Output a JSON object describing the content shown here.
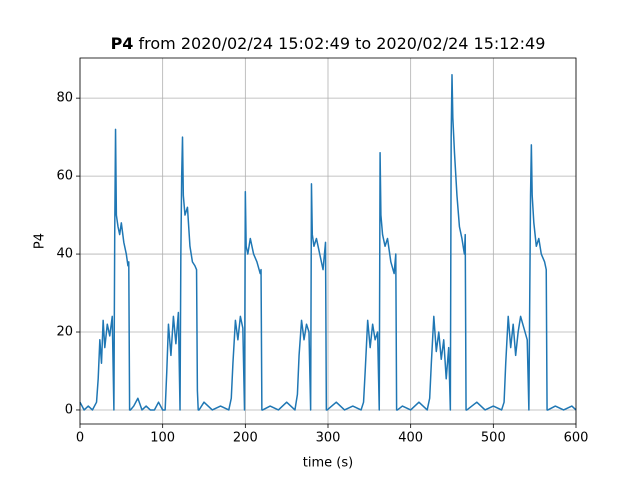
{
  "chart_data": {
    "type": "line",
    "title": {
      "bold": "P4",
      "text": "from 2020/02/24 15:02:49 to 2020/02/24 15:12:49"
    },
    "xlabel": "time (s)",
    "ylabel": "P4",
    "xlim": [
      0,
      600
    ],
    "ylim": [
      -3.6,
      90.3
    ],
    "xticks": [
      0,
      100,
      200,
      300,
      400,
      500,
      600
    ],
    "yticks": [
      0,
      20,
      40,
      60,
      80
    ],
    "grid": true,
    "x": [
      0,
      5,
      10,
      15,
      20,
      22,
      24,
      26,
      28,
      30,
      33,
      36,
      39,
      41,
      42,
      43,
      44,
      46,
      48,
      50,
      53,
      56,
      58,
      59,
      60,
      61,
      65,
      70,
      75,
      80,
      85,
      90,
      95,
      100,
      103,
      105,
      107,
      110,
      113,
      116,
      119,
      121,
      122,
      123,
      124,
      125,
      127,
      130,
      133,
      136,
      139,
      141,
      142,
      143,
      144,
      150,
      160,
      170,
      180,
      183,
      185,
      188,
      191,
      194,
      197,
      199,
      200,
      201,
      203,
      206,
      210,
      214,
      218,
      219,
      220,
      221,
      230,
      240,
      250,
      260,
      263,
      265,
      268,
      271,
      274,
      277,
      279,
      280,
      281,
      283,
      286,
      290,
      294,
      297,
      298,
      299,
      310,
      320,
      330,
      340,
      343,
      345,
      348,
      351,
      354,
      357,
      360,
      362,
      363,
      364,
      366,
      369,
      372,
      376,
      380,
      382,
      383,
      384,
      390,
      400,
      410,
      420,
      423,
      425,
      428,
      431,
      434,
      437,
      440,
      443,
      446,
      448,
      449,
      450,
      451,
      453,
      456,
      459,
      462,
      465,
      466,
      467,
      468,
      480,
      490,
      500,
      510,
      513,
      515,
      518,
      521,
      524,
      527,
      530,
      533,
      541,
      543,
      545,
      546,
      547,
      549,
      552,
      555,
      558,
      562,
      564,
      565,
      566,
      575,
      585,
      595,
      600
    ],
    "series": [
      {
        "name": "P4",
        "color": "#1f77b4",
        "values": [
          2,
          0,
          1,
          0,
          2,
          8,
          18,
          12,
          23,
          16,
          22,
          19,
          24,
          0,
          45,
          72,
          50,
          47,
          45,
          48,
          43,
          40,
          37,
          38,
          0,
          0,
          1,
          3,
          0,
          1,
          0,
          0,
          2,
          0,
          0,
          10,
          22,
          14,
          24,
          17,
          25,
          0,
          40,
          60,
          70,
          55,
          50,
          52,
          42,
          38,
          37,
          36,
          5,
          0,
          0,
          2,
          0,
          1,
          0,
          3,
          12,
          23,
          18,
          24,
          21,
          0,
          56,
          42,
          40,
          44,
          40,
          38,
          35,
          36,
          0,
          0,
          1,
          0,
          2,
          0,
          4,
          14,
          23,
          18,
          22,
          20,
          0,
          58,
          45,
          42,
          44,
          40,
          36,
          43,
          0,
          0,
          2,
          0,
          1,
          0,
          2,
          10,
          23,
          16,
          22,
          18,
          20,
          0,
          66,
          50,
          45,
          42,
          44,
          38,
          35,
          40,
          0,
          0,
          1,
          0,
          2,
          0,
          3,
          12,
          24,
          15,
          20,
          13,
          18,
          8,
          16,
          0,
          70,
          86,
          75,
          66,
          55,
          47,
          44,
          40,
          45,
          0,
          0,
          2,
          0,
          1,
          0,
          2,
          12,
          24,
          16,
          22,
          14,
          20,
          24,
          18,
          0,
          55,
          68,
          55,
          48,
          42,
          44,
          40,
          38,
          36,
          0,
          0,
          1,
          0,
          1,
          0
        ]
      }
    ]
  }
}
